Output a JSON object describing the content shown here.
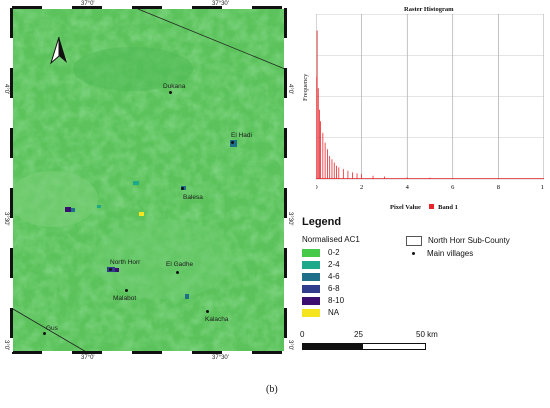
{
  "map": {
    "top_ticks": [
      "37°0'",
      "37°30'"
    ],
    "bottom_ticks": [
      "37°0'",
      "37°30'"
    ],
    "left_ticks": [
      "4°0'",
      "3°30'",
      "3°0'"
    ],
    "right_ticks": [
      "4°0'",
      "3°30'",
      "3°0'"
    ],
    "north_arrow": "north-arrow-icon",
    "villages": [
      "Dukana",
      "El Hadi",
      "Balesa",
      "North Horr",
      "El Gadhe",
      "Malabot",
      "Kalacha",
      "Gus"
    ]
  },
  "histogram": {
    "title": "Raster Histogram",
    "ylabel": "Frequency",
    "xlabel_prefix": "Pixel Value",
    "legend_label": "Band 1",
    "x_ticks": [
      "0",
      "2",
      "4",
      "6",
      "8",
      "10"
    ],
    "color": "#e8262a"
  },
  "chart_data": {
    "type": "line",
    "title": "Raster Histogram",
    "xlabel": "Pixel Value",
    "ylabel": "Frequency",
    "xlim": [
      0,
      10
    ],
    "series": [
      {
        "name": "Band 1",
        "x": [
          0.0,
          0.05,
          0.1,
          0.15,
          0.2,
          0.3,
          0.4,
          0.5,
          0.6,
          0.7,
          0.8,
          0.9,
          1.0,
          1.2,
          1.4,
          1.6,
          1.8,
          2.0,
          2.5,
          3.0,
          4.0,
          5.0,
          6.0,
          8.0,
          10.0
        ],
        "y": [
          0.62,
          0.9,
          0.55,
          0.42,
          0.35,
          0.28,
          0.22,
          0.18,
          0.14,
          0.12,
          0.1,
          0.08,
          0.07,
          0.06,
          0.05,
          0.04,
          0.035,
          0.03,
          0.02,
          0.015,
          0.01,
          0.008,
          0.006,
          0.004,
          0.002
        ]
      }
    ]
  },
  "legend": {
    "title": "Legend",
    "subtitle": "Normalised AC1",
    "classes": [
      {
        "label": "0-2",
        "color": "#47c94a"
      },
      {
        "label": "2-4",
        "color": "#1ea98a"
      },
      {
        "label": "4-6",
        "color": "#1f6f8b"
      },
      {
        "label": "6-8",
        "color": "#2f3d8c"
      },
      {
        "label": "8-10",
        "color": "#3b0f6f"
      },
      {
        "label": "NA",
        "color": "#f4e51f"
      }
    ],
    "boundary_label": "North Horr Sub-County",
    "villages_label": "Main villages"
  },
  "scalebar": {
    "labels": [
      "0",
      "25",
      "50 km"
    ]
  },
  "caption": "(b)"
}
